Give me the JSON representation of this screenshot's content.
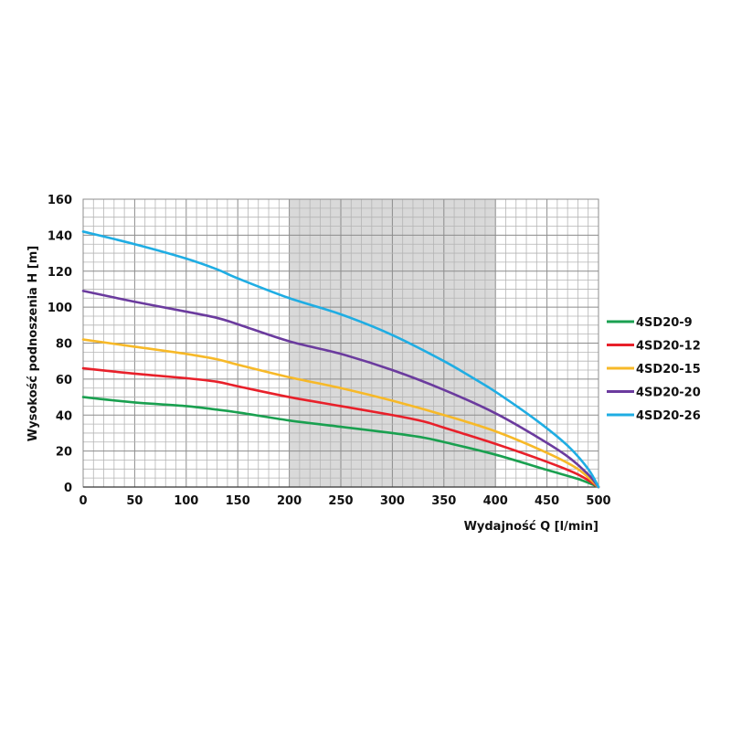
{
  "chart_data": {
    "type": "line",
    "title": "",
    "xlabel": "Wydajność Q [l/min]",
    "ylabel": "Wysokość podnoszenia H [m]",
    "xlim": [
      0,
      500
    ],
    "ylim": [
      0,
      160
    ],
    "x_ticks": [
      "0",
      "50",
      "100",
      "150",
      "200",
      "250",
      "300",
      "350",
      "400",
      "450",
      "500"
    ],
    "y_ticks": [
      "0",
      "20",
      "40",
      "60",
      "80",
      "100",
      "120",
      "140",
      "160"
    ],
    "grid": true,
    "minor_x_step": 10,
    "minor_y_step": 5,
    "highlight_x_range": [
      200,
      400
    ],
    "highlight_color": "#d9d9d9",
    "legend_position": "right",
    "series": [
      {
        "name": "4SD20-9",
        "color": "#1aa050",
        "points": [
          [
            0,
            50
          ],
          [
            50,
            47
          ],
          [
            100,
            45
          ],
          [
            130,
            43
          ],
          [
            150,
            41.5
          ],
          [
            200,
            37
          ],
          [
            250,
            33.5
          ],
          [
            300,
            30
          ],
          [
            330,
            27.5
          ],
          [
            350,
            25
          ],
          [
            400,
            18
          ],
          [
            450,
            9.5
          ],
          [
            480,
            4.5
          ],
          [
            500,
            0
          ]
        ]
      },
      {
        "name": "4SD20-12",
        "color": "#e8202a",
        "points": [
          [
            0,
            66
          ],
          [
            50,
            63
          ],
          [
            100,
            60.5
          ],
          [
            130,
            58.5
          ],
          [
            150,
            56
          ],
          [
            200,
            50
          ],
          [
            250,
            45
          ],
          [
            300,
            40
          ],
          [
            330,
            36.5
          ],
          [
            350,
            33
          ],
          [
            400,
            24
          ],
          [
            450,
            14
          ],
          [
            480,
            7
          ],
          [
            500,
            0
          ]
        ]
      },
      {
        "name": "4SD20-15",
        "color": "#f7b928",
        "points": [
          [
            0,
            82
          ],
          [
            50,
            78
          ],
          [
            100,
            74
          ],
          [
            130,
            71
          ],
          [
            150,
            68
          ],
          [
            200,
            61
          ],
          [
            250,
            55
          ],
          [
            300,
            48
          ],
          [
            350,
            40
          ],
          [
            400,
            31
          ],
          [
            450,
            19
          ],
          [
            480,
            10
          ],
          [
            500,
            0
          ]
        ]
      },
      {
        "name": "4SD20-20",
        "color": "#6b3b9e",
        "points": [
          [
            0,
            109
          ],
          [
            50,
            103
          ],
          [
            100,
            97.5
          ],
          [
            130,
            94
          ],
          [
            150,
            90.5
          ],
          [
            200,
            81
          ],
          [
            250,
            74
          ],
          [
            300,
            65
          ],
          [
            350,
            54
          ],
          [
            400,
            41
          ],
          [
            440,
            28
          ],
          [
            470,
            17
          ],
          [
            490,
            7
          ],
          [
            500,
            0
          ]
        ]
      },
      {
        "name": "4SD20-26",
        "color": "#1fade3",
        "points": [
          [
            0,
            142
          ],
          [
            50,
            135
          ],
          [
            100,
            127
          ],
          [
            130,
            121
          ],
          [
            150,
            116
          ],
          [
            200,
            105
          ],
          [
            250,
            96
          ],
          [
            300,
            84.5
          ],
          [
            350,
            70
          ],
          [
            380,
            60
          ],
          [
            400,
            53
          ],
          [
            440,
            37
          ],
          [
            470,
            23
          ],
          [
            490,
            10
          ],
          [
            500,
            0
          ]
        ]
      }
    ]
  }
}
